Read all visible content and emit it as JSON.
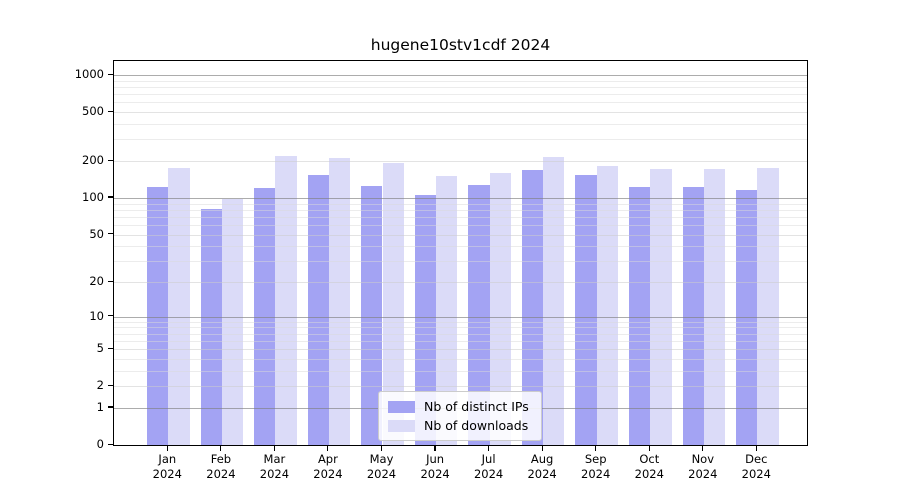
{
  "chart_data": {
    "type": "bar",
    "title": "hugene10stv1cdf 2024",
    "categories": [
      "Jan",
      "Feb",
      "Mar",
      "Apr",
      "May",
      "Jun",
      "Jul",
      "Aug",
      "Sep",
      "Oct",
      "Nov",
      "Dec"
    ],
    "category_year": "2024",
    "series": [
      {
        "name": "Nb of distinct IPs",
        "color": "#a3a3f3",
        "values": [
          119,
          78,
          116,
          147,
          121,
          101,
          123,
          162,
          147,
          118,
          118,
          112
        ]
      },
      {
        "name": "Nb of downloads",
        "color": "#dbdbf8",
        "values": [
          170,
          95,
          212,
          203,
          186,
          146,
          153,
          206,
          176,
          166,
          166,
          168
        ]
      }
    ],
    "y_ticks": [
      0,
      1,
      2,
      5,
      10,
      20,
      50,
      100,
      200,
      500,
      1000
    ],
    "y_scale": "log1p",
    "ylim": [
      0,
      1350
    ],
    "grid": true,
    "legend_position": "inside-bottom-center",
    "colors": {
      "grid_major": "#808080",
      "grid_mid": "#cccccc",
      "grid_minor": "#d9d9d9",
      "axis": "#000000",
      "text": "#000000",
      "background": "#ffffff"
    }
  }
}
